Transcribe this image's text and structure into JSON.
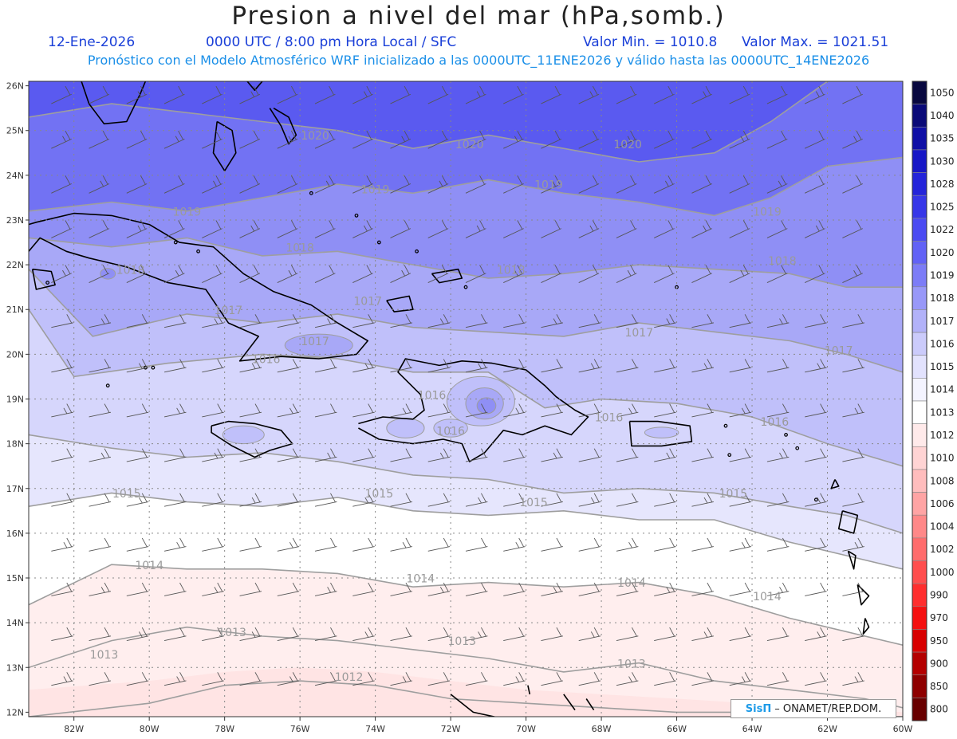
{
  "title": "Presion a nivel del mar (hPa,somb.)",
  "subtitle": {
    "date": "12-Ene-2026",
    "time": "0000 UTC / 8:00 pm Hora Local / SFC",
    "min": "Valor Min. = 1010.8",
    "max": "Valor Max. = 1021.51"
  },
  "forecast_note": "Pronóstico con el Modelo Atmosférico WRF inicializado a las 0000UTC_11ENE2026 y válido hasta las  0000UTC_14ENE2026",
  "credit": {
    "brand": "SisΠ",
    "text": "– ONAMET/REP.DOM."
  },
  "map": {
    "lon_range": [
      -83.2,
      -60
    ],
    "lat_range": [
      11.9,
      26.1
    ],
    "lon_ticks": [
      "82W",
      "80W",
      "78W",
      "76W",
      "74W",
      "72W",
      "70W",
      "68W",
      "66W",
      "64W",
      "62W",
      "60W"
    ],
    "lat_ticks": [
      "12N",
      "13N",
      "14N",
      "15N",
      "16N",
      "17N",
      "18N",
      "19N",
      "20N",
      "21N",
      "22N",
      "23N",
      "24N",
      "25N",
      "26N"
    ],
    "grid": true,
    "contour_labels": [
      {
        "text": "1020",
        "lon": -75.6,
        "lat": 24.8
      },
      {
        "text": "1020",
        "lon": -71.5,
        "lat": 24.6
      },
      {
        "text": "1020",
        "lon": -67.3,
        "lat": 24.6
      },
      {
        "text": "1019",
        "lon": -74.0,
        "lat": 23.6
      },
      {
        "text": "1019",
        "lon": -69.4,
        "lat": 23.7
      },
      {
        "text": "1019",
        "lon": -79.0,
        "lat": 23.1
      },
      {
        "text": "1019",
        "lon": -63.6,
        "lat": 23.1
      },
      {
        "text": "1018",
        "lon": -76.0,
        "lat": 22.3
      },
      {
        "text": "1018",
        "lon": -80.5,
        "lat": 21.8
      },
      {
        "text": "1018",
        "lon": -70.4,
        "lat": 21.8
      },
      {
        "text": "1018",
        "lon": -63.2,
        "lat": 22.0
      },
      {
        "text": "1017",
        "lon": -74.2,
        "lat": 21.1
      },
      {
        "text": "1017",
        "lon": -77.9,
        "lat": 20.9
      },
      {
        "text": "1017",
        "lon": -75.6,
        "lat": 20.2
      },
      {
        "text": "1017",
        "lon": -67.0,
        "lat": 20.4
      },
      {
        "text": "1017",
        "lon": -61.7,
        "lat": 20.0
      },
      {
        "text": "1016",
        "lon": -76.9,
        "lat": 19.8
      },
      {
        "text": "1016",
        "lon": -72.5,
        "lat": 19.0
      },
      {
        "text": "1016",
        "lon": -67.8,
        "lat": 18.5
      },
      {
        "text": "1016",
        "lon": -63.4,
        "lat": 18.4
      },
      {
        "text": "1016",
        "lon": -72.0,
        "lat": 18.2
      },
      {
        "text": "1015",
        "lon": -80.6,
        "lat": 16.8
      },
      {
        "text": "1015",
        "lon": -73.9,
        "lat": 16.8
      },
      {
        "text": "1015",
        "lon": -69.8,
        "lat": 16.6
      },
      {
        "text": "1015",
        "lon": -64.5,
        "lat": 16.8
      },
      {
        "text": "1014",
        "lon": -80.0,
        "lat": 15.2
      },
      {
        "text": "1014",
        "lon": -72.8,
        "lat": 14.9
      },
      {
        "text": "1014",
        "lon": -67.2,
        "lat": 14.8
      },
      {
        "text": "1014",
        "lon": -63.6,
        "lat": 14.5
      },
      {
        "text": "1013",
        "lon": -77.8,
        "lat": 13.7
      },
      {
        "text": "1013",
        "lon": -71.7,
        "lat": 13.5
      },
      {
        "text": "1013",
        "lon": -81.2,
        "lat": 13.2
      },
      {
        "text": "1013",
        "lon": -67.2,
        "lat": 13.0
      },
      {
        "text": "1012",
        "lon": -74.7,
        "lat": 12.7
      }
    ]
  },
  "colorbar": {
    "levels": [
      "1050",
      "1040",
      "1035",
      "1030",
      "1028",
      "1025",
      "1022",
      "1020",
      "1019",
      "1018",
      "1017",
      "1016",
      "1015",
      "1014",
      "1013",
      "1012",
      "1010",
      "1008",
      "1006",
      "1004",
      "1002",
      "1000",
      "990",
      "970",
      "950",
      "900",
      "850",
      "800"
    ],
    "colors": [
      "#08083f",
      "#0a0a78",
      "#0f0fa6",
      "#1717c6",
      "#2424da",
      "#3636e8",
      "#4a4af2",
      "#6262f6",
      "#7c7cf7",
      "#9898f8",
      "#b2b2f9",
      "#cbcbfb",
      "#e2e2fd",
      "#f4f4ff",
      "#ffffff",
      "#ffeaea",
      "#ffd4d4",
      "#ffbdbd",
      "#ffa4a4",
      "#ff8888",
      "#ff6c6c",
      "#ff4e4e",
      "#ff2e2e",
      "#f51010",
      "#d80000",
      "#b40000",
      "#8e0000",
      "#680000"
    ]
  },
  "palette": {
    "p1021": "#5a5af0",
    "p1020": "#7272f3",
    "p1019": "#8f8ff5",
    "p1018": "#a8a8f7",
    "p1017": "#c0c0fa",
    "p1016": "#d6d6fc",
    "p1015": "#e6e6fd",
    "p1014": "#ffffff",
    "p1013": "#ffeeee",
    "p1012": "#ffe4e4"
  }
}
